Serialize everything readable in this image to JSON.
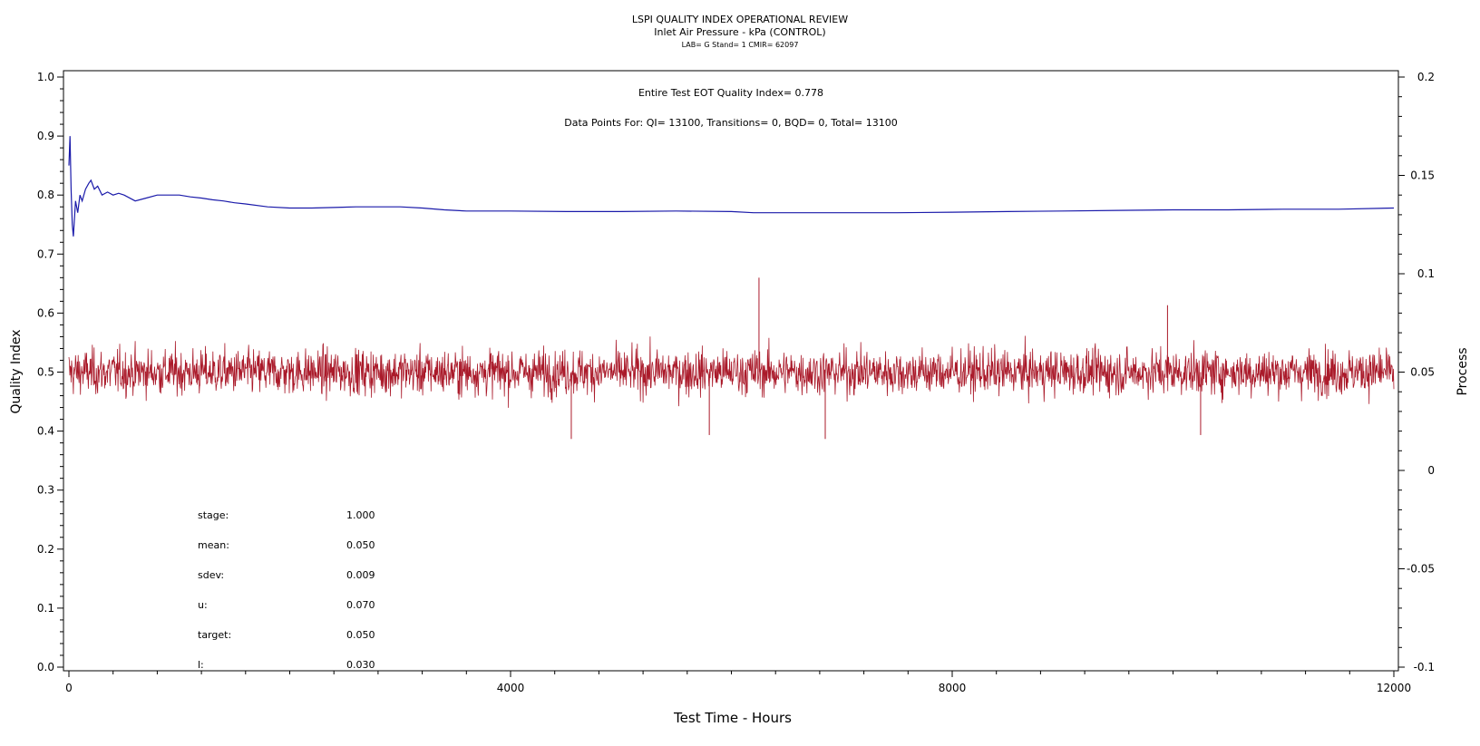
{
  "chart_data": {
    "type": "line",
    "title": "LSPI QUALITY INDEX OPERATIONAL REVIEW",
    "subtitle": "Inlet Air Pressure - kPa (CONTROL)",
    "subtitle2": "LAB= G Stand= 1 CMIR= 62097",
    "xlabel": "Test Time - Hours",
    "ylabel": "Quality Index",
    "y2label": "Process",
    "xlim": [
      0,
      12000
    ],
    "ylim": [
      0.0,
      1.0
    ],
    "y2lim": [
      -0.1,
      0.2
    ],
    "x_ticks": [
      "0",
      "4000",
      "8000",
      "12000"
    ],
    "y_ticks": [
      "0.0",
      "0.1",
      "0.2",
      "0.3",
      "0.4",
      "0.5",
      "0.6",
      "0.7",
      "0.8",
      "0.9",
      "1.0"
    ],
    "y2_ticks": [
      "-0.1",
      "-0.05",
      "0",
      "0.05",
      "0.1",
      "0.15",
      "0.2"
    ],
    "annotations": {
      "eot": "Entire Test EOT Quality Index=   0.778",
      "points": "Data Points For: QI= 13100, Transitions=      0, BQD=      0, Total= 13100"
    },
    "stats": [
      {
        "label": "stage:",
        "value": "1.000"
      },
      {
        "label": "mean:",
        "value": "0.050"
      },
      {
        "label": "sdev:",
        "value": "0.009"
      },
      {
        "label": "u:",
        "value": "0.070"
      },
      {
        "label": "target:",
        "value": "0.050"
      },
      {
        "label": "l:",
        "value": "0.030"
      }
    ],
    "series": [
      {
        "axis": "left",
        "color": "#1a1aaa",
        "x": [
          0,
          10,
          20,
          30,
          40,
          50,
          60,
          80,
          100,
          120,
          150,
          180,
          200,
          230,
          260,
          300,
          350,
          400,
          450,
          500,
          600,
          700,
          800,
          900,
          1000,
          1100,
          1200,
          1300,
          1400,
          1500,
          1600,
          1800,
          2000,
          2200,
          2400,
          2600,
          2800,
          3000,
          3200,
          3400,
          3600,
          3800,
          4000,
          4500,
          5000,
          5500,
          6000,
          6200,
          6500,
          7000,
          7500,
          8000,
          8500,
          9000,
          9500,
          10000,
          10500,
          11000,
          11500,
          12000
        ],
        "values": [
          0.85,
          0.9,
          0.81,
          0.75,
          0.73,
          0.76,
          0.79,
          0.77,
          0.8,
          0.79,
          0.81,
          0.82,
          0.825,
          0.81,
          0.815,
          0.8,
          0.805,
          0.8,
          0.803,
          0.8,
          0.79,
          0.795,
          0.8,
          0.8,
          0.8,
          0.797,
          0.795,
          0.792,
          0.79,
          0.787,
          0.785,
          0.78,
          0.778,
          0.778,
          0.779,
          0.78,
          0.78,
          0.78,
          0.778,
          0.775,
          0.773,
          0.773,
          0.773,
          0.772,
          0.772,
          0.773,
          0.772,
          0.77,
          0.77,
          0.77,
          0.77,
          0.771,
          0.772,
          0.773,
          0.774,
          0.775,
          0.775,
          0.776,
          0.776,
          0.778
        ]
      },
      {
        "axis": "right",
        "color": "#aa1a2a",
        "center": 0.05,
        "sdev": 0.009,
        "n": 13100,
        "spikes": [
          {
            "x": 6250,
            "value": 0.098
          },
          {
            "x": 5800,
            "value": 0.018
          },
          {
            "x": 6850,
            "value": 0.016
          },
          {
            "x": 10250,
            "value": 0.018
          },
          {
            "x": 9950,
            "value": 0.084
          },
          {
            "x": 4550,
            "value": 0.016
          }
        ]
      }
    ]
  }
}
